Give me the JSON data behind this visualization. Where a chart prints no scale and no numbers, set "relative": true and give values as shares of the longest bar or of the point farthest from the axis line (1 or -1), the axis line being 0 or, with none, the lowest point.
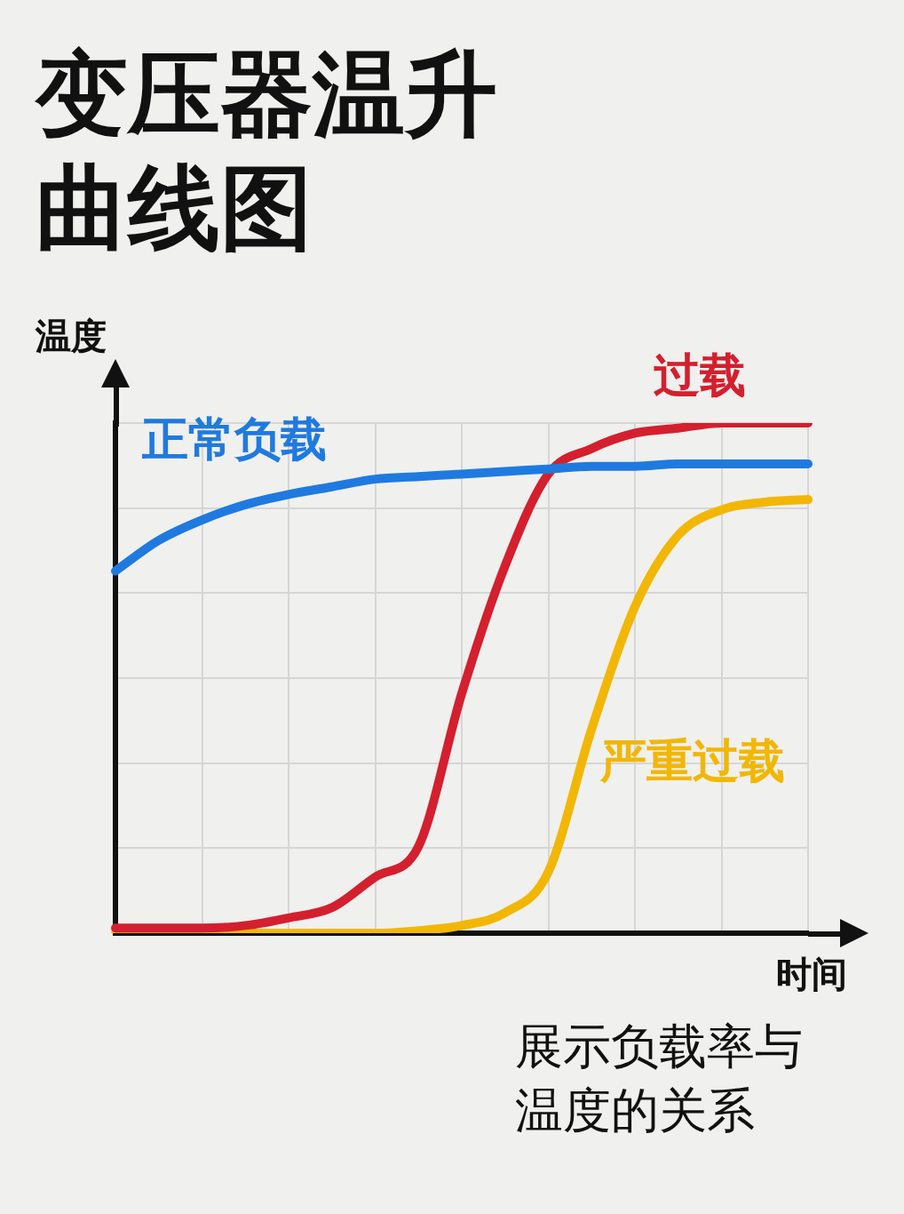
{
  "chart_data": {
    "type": "line",
    "title": "变压器温升曲线图",
    "xlabel": "时间",
    "ylabel": "温度",
    "annotations": [
      "展示负载率与温度的关系"
    ],
    "relative": true,
    "grid": true,
    "legend": false,
    "marker": "none",
    "line_style": "solid",
    "categories": [
      null,
      null,
      null,
      null,
      null,
      null,
      null,
      null,
      null,
      null,
      null,
      null,
      null,
      null,
      null,
      null,
      null
    ],
    "series": [
      {
        "name": "正常负载",
        "color": "#1f7ae0",
        "values": [
          0.71,
          0.77,
          0.81,
          0.84,
          0.86,
          0.875,
          0.89,
          0.895,
          0.9,
          0.905,
          0.91,
          0.915,
          0.915,
          0.92,
          0.92,
          0.92,
          0.92
        ]
      },
      {
        "name": "过载",
        "color": "#d41f2e",
        "values": [
          0.01,
          0.01,
          0.01,
          0.015,
          0.03,
          0.05,
          0.11,
          0.17,
          0.47,
          0.72,
          0.9,
          0.95,
          0.98,
          0.99,
          1,
          1,
          1
        ]
      },
      {
        "name": "严重过载",
        "color": "#f2b705",
        "values": [
          0,
          0,
          0,
          0,
          0,
          0,
          0,
          0.005,
          0.015,
          0.04,
          0.12,
          0.4,
          0.64,
          0.78,
          0.83,
          0.845,
          0.85
        ]
      }
    ]
  }
}
